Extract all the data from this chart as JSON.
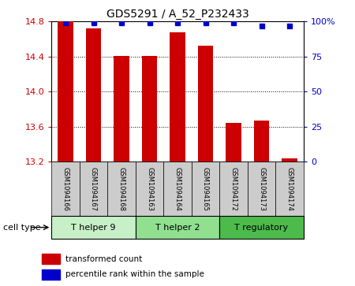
{
  "title": "GDS5291 / A_52_P232433",
  "samples": [
    "GSM1094166",
    "GSM1094167",
    "GSM1094168",
    "GSM1094163",
    "GSM1094164",
    "GSM1094165",
    "GSM1094172",
    "GSM1094173",
    "GSM1094174"
  ],
  "transformed_counts": [
    14.8,
    14.72,
    14.41,
    14.41,
    14.68,
    14.52,
    13.64,
    13.67,
    13.24
  ],
  "percentile_ranks": [
    99,
    99,
    99,
    99,
    99,
    99,
    99,
    97,
    97
  ],
  "ylim_left": [
    13.2,
    14.8
  ],
  "ylim_right": [
    0,
    100
  ],
  "yticks_left": [
    13.2,
    13.6,
    14.0,
    14.4,
    14.8
  ],
  "yticks_right": [
    0,
    25,
    50,
    75,
    100
  ],
  "cell_type_groups": [
    {
      "label": "T helper 9",
      "start": 0,
      "end": 2,
      "color": "#c8f0c8"
    },
    {
      "label": "T helper 2",
      "start": 3,
      "end": 5,
      "color": "#90e090"
    },
    {
      "label": "T regulatory",
      "start": 6,
      "end": 8,
      "color": "#4cbb4c"
    }
  ],
  "bar_color": "#cc0000",
  "dot_color": "#0000cc",
  "bar_width": 0.55,
  "grid_color": "#000000",
  "tick_label_color_left": "#cc0000",
  "tick_label_color_right": "#0000cc",
  "xlabel_area_color": "#cccccc",
  "cell_type_label": "cell type"
}
